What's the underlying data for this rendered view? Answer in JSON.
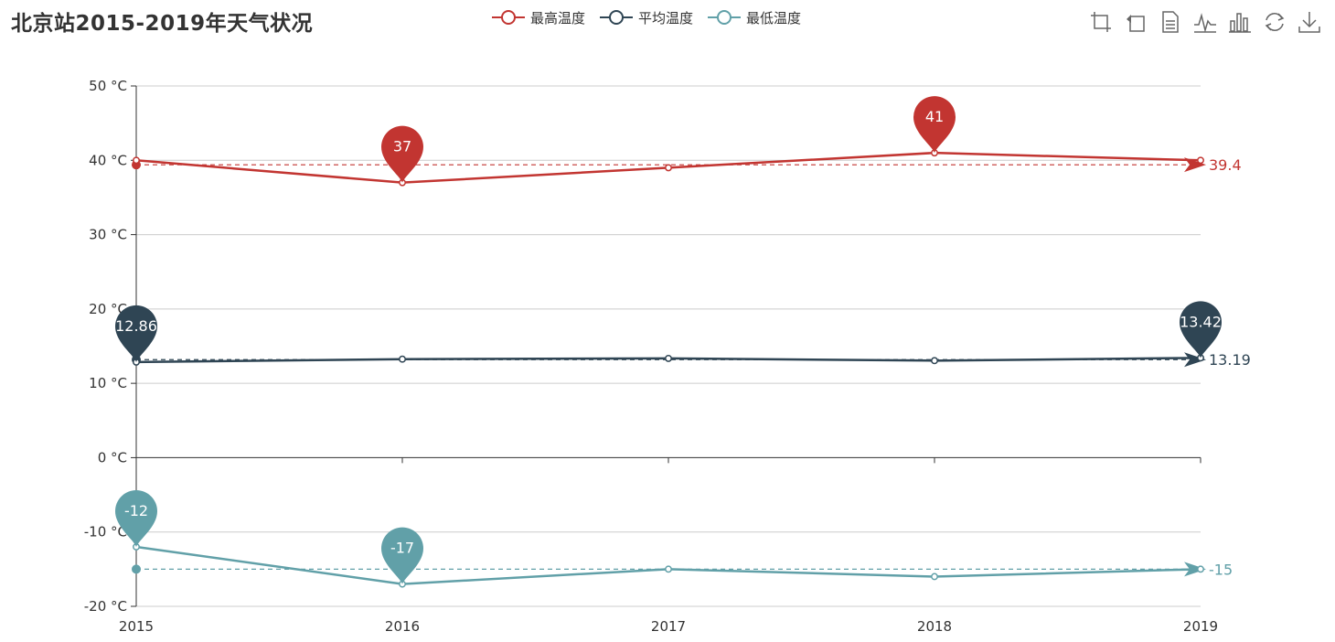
{
  "title": "北京站2015-2019年天气状况",
  "legend": [
    {
      "label": "最高温度",
      "color": "#c23531"
    },
    {
      "label": "平均温度",
      "color": "#2f4554"
    },
    {
      "label": "最低温度",
      "color": "#61a0a8"
    }
  ],
  "toolbox": [
    {
      "name": "zoom-icon"
    },
    {
      "name": "zoom-reset-icon"
    },
    {
      "name": "data-view-icon"
    },
    {
      "name": "line-chart-icon"
    },
    {
      "name": "bar-chart-icon"
    },
    {
      "name": "restore-icon"
    },
    {
      "name": "download-icon"
    }
  ],
  "chart_data": {
    "type": "line",
    "title": "北京站2015-2019年天气状况",
    "categories": [
      "2015",
      "2016",
      "2017",
      "2018",
      "2019"
    ],
    "y_ticks": [
      "50 °C",
      "40 °C",
      "30 °C",
      "20 °C",
      "10 °C",
      "0 °C",
      "-10 °C",
      "-20 °C"
    ],
    "y_tick_values": [
      50,
      40,
      30,
      20,
      10,
      0,
      -10,
      -20
    ],
    "ylim": [
      -20,
      50
    ],
    "grid": "horizontal",
    "legend_position": "top-center",
    "series": [
      {
        "name": "最高温度",
        "color": "#c23531",
        "values": [
          40,
          37,
          39,
          41,
          40
        ],
        "markPoint": [
          {
            "index": 1,
            "value": 37,
            "label": "37"
          },
          {
            "index": 3,
            "value": 41,
            "label": "41"
          }
        ],
        "markLine": {
          "value": 39.4,
          "label": "39.4"
        }
      },
      {
        "name": "平均温度",
        "color": "#2f4554",
        "values": [
          12.86,
          13.25,
          13.35,
          13.05,
          13.42
        ],
        "markPoint": [
          {
            "index": 0,
            "value": 12.86,
            "label": "12.86"
          },
          {
            "index": 4,
            "value": 13.42,
            "label": "13.42"
          }
        ],
        "markLine": {
          "value": 13.19,
          "label": "13.19"
        }
      },
      {
        "name": "最低温度",
        "color": "#61a0a8",
        "values": [
          -12,
          -17,
          -15,
          -16,
          -15
        ],
        "markPoint": [
          {
            "index": 0,
            "value": -12,
            "label": "-12"
          },
          {
            "index": 1,
            "value": -17,
            "label": "-17"
          }
        ],
        "markLine": {
          "value": -15,
          "label": "-15"
        }
      }
    ]
  }
}
